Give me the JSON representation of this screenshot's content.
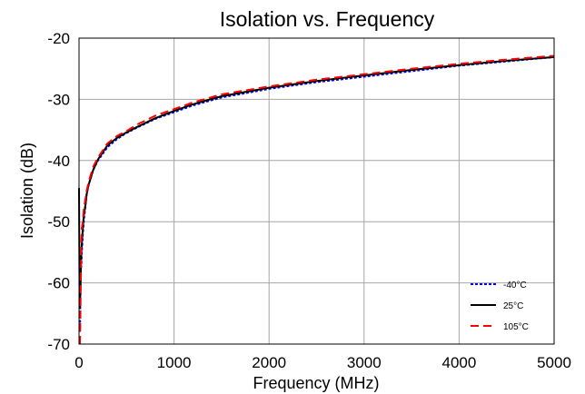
{
  "chart_data": {
    "type": "line",
    "title": "Isolation vs. Frequency",
    "xlabel": "Frequency (MHz)",
    "ylabel": "Isolation (dB)",
    "xlim": [
      0,
      5000
    ],
    "ylim": [
      -70,
      -20
    ],
    "x_ticks": [
      0,
      1000,
      2000,
      3000,
      4000,
      5000
    ],
    "y_ticks": [
      -70,
      -60,
      -50,
      -40,
      -30,
      -20
    ],
    "grid": true,
    "legend_position": "bottom-right",
    "series": [
      {
        "name": "-40°C",
        "color": "#0000ff",
        "dash": "dotted",
        "x": [
          10,
          15,
          20,
          25,
          30,
          40,
          50,
          60,
          70,
          80,
          100,
          150,
          200,
          300,
          400,
          500,
          600,
          800,
          1000,
          1200,
          1500,
          2000,
          2500,
          3000,
          3500,
          4000,
          4500,
          5000
        ],
        "y": [
          -68,
          -62,
          -58,
          -57,
          -55,
          -52,
          -50,
          -48.5,
          -47,
          -45.5,
          -44,
          -41.5,
          -40,
          -37.8,
          -36.5,
          -35.5,
          -34.7,
          -33.2,
          -32.1,
          -31,
          -29.7,
          -28.3,
          -27.2,
          -26.3,
          -25.4,
          -24.5,
          -23.8,
          -23.1
        ]
      },
      {
        "name": "25°C",
        "color": "#000000",
        "dash": "solid",
        "x": [
          0,
          5,
          10,
          15,
          20,
          25,
          30,
          40,
          50,
          60,
          70,
          80,
          100,
          150,
          200,
          300,
          400,
          500,
          600,
          800,
          1000,
          1200,
          1500,
          2000,
          2500,
          3000,
          3500,
          4000,
          4500,
          5000
        ],
        "y": [
          -44.5,
          -60,
          -64,
          -60,
          -57,
          -55,
          -53.5,
          -51,
          -49,
          -48,
          -47,
          -45.5,
          -44,
          -41.5,
          -39.8,
          -37.5,
          -36.3,
          -35.4,
          -34.6,
          -33.1,
          -31.9,
          -30.8,
          -29.5,
          -28.1,
          -27,
          -26.1,
          -25.2,
          -24.4,
          -23.7,
          -23.1
        ]
      },
      {
        "name": "105°C",
        "color": "#ff0000",
        "dash": "dashed",
        "x": [
          10,
          15,
          20,
          25,
          30,
          40,
          50,
          60,
          70,
          80,
          100,
          150,
          200,
          300,
          400,
          500,
          600,
          800,
          1000,
          1200,
          1500,
          2000,
          2500,
          3000,
          3500,
          4000,
          4500,
          5000
        ],
        "y": [
          -70,
          -64,
          -58,
          -53,
          -51,
          -50,
          -48,
          -47,
          -46,
          -45,
          -43.5,
          -41,
          -39.5,
          -37.2,
          -36,
          -35.2,
          -34.2,
          -32.7,
          -31.6,
          -30.5,
          -29.2,
          -27.9,
          -26.8,
          -25.9,
          -25,
          -24.2,
          -23.5,
          -22.9
        ]
      }
    ]
  }
}
